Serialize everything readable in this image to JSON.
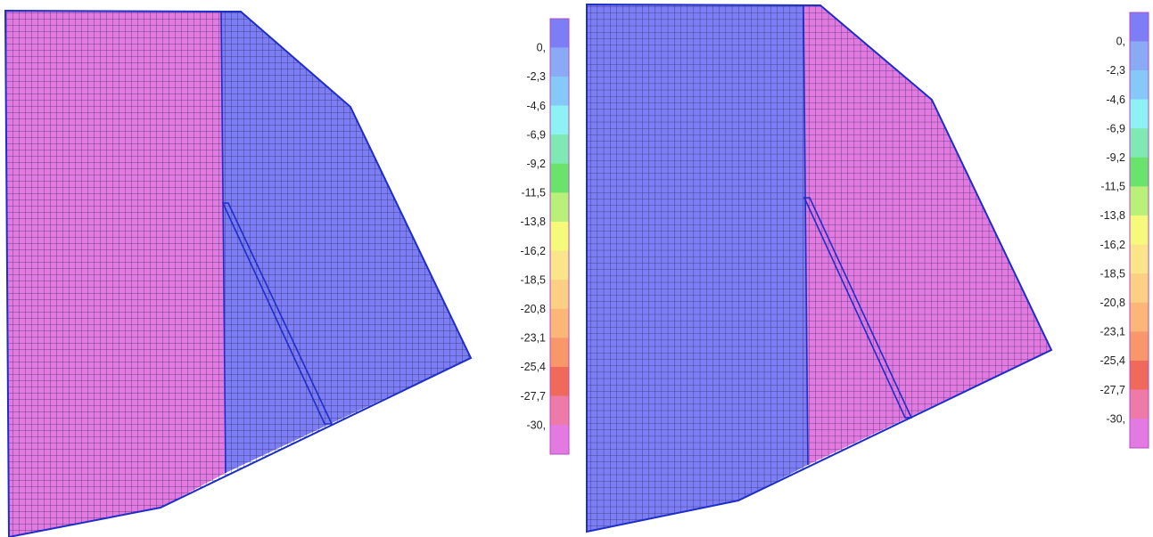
{
  "contour_colors": [
    "#7d7df5",
    "#8aaaf6",
    "#86c8f8",
    "#8ef2f4",
    "#7fe8b4",
    "#6ae36c",
    "#b8f07a",
    "#f5fa7a",
    "#fbe58a",
    "#fcd084",
    "#fbb678",
    "#f8986a",
    "#f06a5c",
    "#ee7aa8",
    "#e27ae2"
  ],
  "mesh_color": "#1a1f3a",
  "outline_color": "#1e2ec8",
  "panels": [
    {
      "legend_labels": [
        "0,",
        "-2,3",
        "-4,6",
        "-6,9",
        "-9,2",
        "-11,5",
        "-13,8",
        "-16,2",
        "-18,5",
        "-20,8",
        "-23,1",
        "-25,4",
        "-27,7",
        "-30,"
      ],
      "regions": {
        "upstream": "#e27ae2",
        "downstream": "#7d7df5"
      }
    },
    {
      "legend_labels": [
        "0,",
        "-2,3",
        "-4,6",
        "-6,9",
        "-9,2",
        "-11,5",
        "-13,8",
        "-16,2",
        "-18,5",
        "-20,8",
        "-23,1",
        "-25,4",
        "-27,7",
        "-30,"
      ],
      "regions": {
        "upstream": "#7d7df5",
        "downstream": "#e27ae2"
      }
    }
  ]
}
